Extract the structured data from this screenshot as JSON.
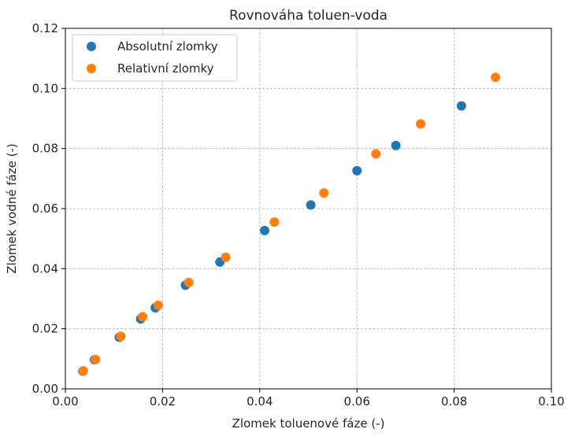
{
  "chart_data": {
    "type": "scatter",
    "title": "Rovnováha toluen-voda",
    "xlabel": "Zlomek toluenové fáze (-)",
    "ylabel": "Zlomek vodné fáze (-)",
    "xlim": [
      0.0,
      0.1
    ],
    "ylim": [
      0.0,
      0.12
    ],
    "xticks": [
      "0.00",
      "0.02",
      "0.04",
      "0.06",
      "0.08",
      "0.10"
    ],
    "yticks": [
      "0.00",
      "0.02",
      "0.04",
      "0.06",
      "0.08",
      "0.10",
      "0.12"
    ],
    "grid": true,
    "legend_position": "top-left",
    "series": [
      {
        "name": "Absolutní zlomky",
        "color": "#1f77b4",
        "x": [
          0.0036,
          0.006,
          0.0111,
          0.0155,
          0.0185,
          0.0247,
          0.0318,
          0.041,
          0.0505,
          0.06,
          0.068,
          0.0815
        ],
        "y": [
          0.0059,
          0.0097,
          0.0172,
          0.0233,
          0.027,
          0.0345,
          0.0422,
          0.0527,
          0.0612,
          0.0726,
          0.081,
          0.0942
        ]
      },
      {
        "name": "Relativní zlomky",
        "color": "#ff7f0e",
        "x": [
          0.0037,
          0.0062,
          0.0114,
          0.0159,
          0.0191,
          0.0254,
          0.033,
          0.043,
          0.0532,
          0.0639,
          0.0731,
          0.0885
        ],
        "y": [
          0.006,
          0.0098,
          0.0175,
          0.024,
          0.0278,
          0.0354,
          0.0438,
          0.0555,
          0.0652,
          0.0782,
          0.0882,
          0.1037
        ]
      }
    ]
  }
}
